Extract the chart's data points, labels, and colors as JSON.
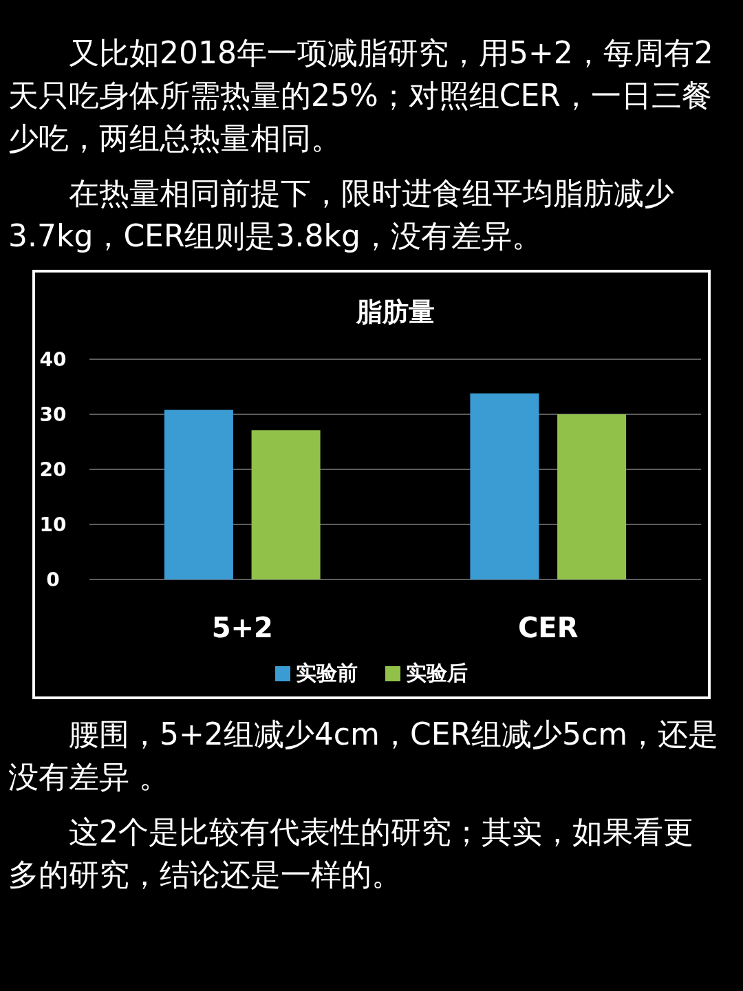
{
  "chart_data": {
    "type": "bar",
    "title": "脂肪量",
    "categories": [
      "5+2",
      "CER"
    ],
    "series": [
      {
        "name": "实验前",
        "color": "#3b9bd3",
        "values": [
          30.8,
          33.8
        ]
      },
      {
        "name": "实验后",
        "color": "#92c14a",
        "values": [
          27.1,
          30.0
        ]
      }
    ],
    "ylim": [
      0,
      40
    ],
    "yticks": [
      0,
      10,
      20,
      30,
      40
    ],
    "grid": "y",
    "legend": "bottom",
    "annotations": [
      "又比如2018年一项减脂研究，用5+2，每周有2天只吃身体所需热量的25%；对照组CER，一日三餐少吃，两组总热量相同。",
      "在热量相同前提下，限时进食组平均脂肪减少3.7kg，CER组则是3.8kg，没有差异。",
      "腰围，5+2组减少4cm，CER组减少5cm，还是没有差异 。",
      "这2个是比较有代表性的研究；其实，如果看更多的研究，结论还是一样的。"
    ]
  }
}
